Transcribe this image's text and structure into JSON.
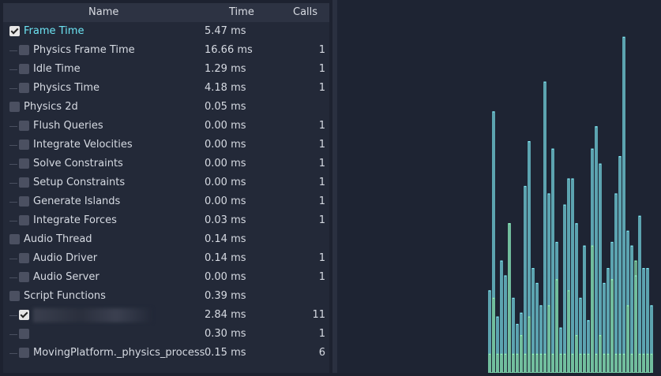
{
  "header": {
    "name": "Name",
    "time": "Time",
    "calls": "Calls"
  },
  "rows": [
    {
      "label": "Frame Time",
      "time": "5.47 ms",
      "calls": "",
      "level": 0,
      "checked": true,
      "active": true
    },
    {
      "label": "Physics Frame Time",
      "time": "16.66 ms",
      "calls": "1",
      "level": 1,
      "checked": false
    },
    {
      "label": "Idle Time",
      "time": "1.29 ms",
      "calls": "1",
      "level": 1,
      "checked": false
    },
    {
      "label": "Physics Time",
      "time": "4.18 ms",
      "calls": "1",
      "level": 1,
      "checked": false
    },
    {
      "label": "Physics 2d",
      "time": "0.05 ms",
      "calls": "",
      "level": 0,
      "checked": false
    },
    {
      "label": "Flush Queries",
      "time": "0.00 ms",
      "calls": "1",
      "level": 1,
      "checked": false
    },
    {
      "label": "Integrate Velocities",
      "time": "0.00 ms",
      "calls": "1",
      "level": 1,
      "checked": false
    },
    {
      "label": "Solve Constraints",
      "time": "0.00 ms",
      "calls": "1",
      "level": 1,
      "checked": false
    },
    {
      "label": "Setup Constraints",
      "time": "0.00 ms",
      "calls": "1",
      "level": 1,
      "checked": false
    },
    {
      "label": "Generate Islands",
      "time": "0.00 ms",
      "calls": "1",
      "level": 1,
      "checked": false
    },
    {
      "label": "Integrate Forces",
      "time": "0.03 ms",
      "calls": "1",
      "level": 1,
      "checked": false
    },
    {
      "label": "Audio Thread",
      "time": "0.14 ms",
      "calls": "",
      "level": 0,
      "checked": false
    },
    {
      "label": "Audio Driver",
      "time": "0.14 ms",
      "calls": "1",
      "level": 1,
      "checked": false
    },
    {
      "label": "Audio Server",
      "time": "0.00 ms",
      "calls": "1",
      "level": 1,
      "checked": false
    },
    {
      "label": "Script Functions",
      "time": "0.39 ms",
      "calls": "",
      "level": 0,
      "checked": false
    },
    {
      "label": "",
      "time": "2.84 ms",
      "calls": "11",
      "level": 1,
      "checked": true,
      "blurred": true
    },
    {
      "label": "",
      "time": "0.30 ms",
      "calls": "1",
      "level": 1,
      "checked": false
    },
    {
      "label": "MovingPlatform._physics_process",
      "time": "0.15 ms",
      "calls": "6",
      "level": 1,
      "checked": false
    }
  ],
  "graph": {
    "series": [
      {
        "color": "#7ee8f4",
        "samples": [
          22,
          70,
          15,
          30,
          26,
          40,
          20,
          13,
          16,
          50,
          62,
          28,
          24,
          18,
          78,
          48,
          60,
          35,
          12,
          45,
          52,
          52,
          40,
          20,
          34,
          14,
          60,
          66,
          56,
          24,
          28,
          35,
          48,
          58,
          90,
          38,
          34,
          26,
          42,
          28,
          28,
          18
        ]
      },
      {
        "color": "#8ff0b8",
        "samples": [
          5,
          20,
          5,
          5,
          5,
          40,
          5,
          5,
          10,
          5,
          15,
          5,
          5,
          5,
          5,
          18,
          5,
          25,
          5,
          5,
          22,
          5,
          10,
          5,
          5,
          5,
          34,
          5,
          10,
          5,
          5,
          25,
          5,
          5,
          5,
          18,
          5,
          30,
          5,
          5,
          5,
          5
        ]
      }
    ]
  }
}
